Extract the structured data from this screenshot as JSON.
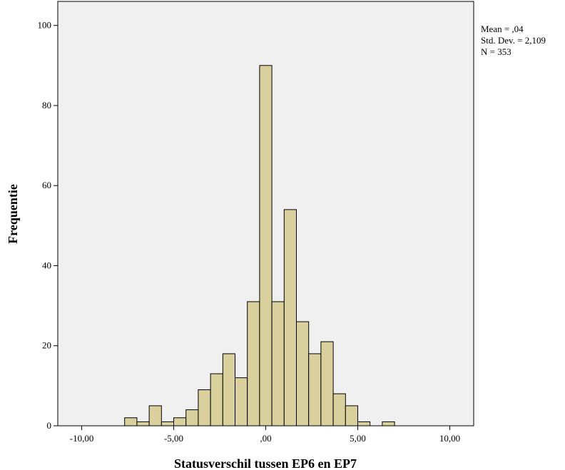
{
  "chart_data": {
    "type": "bar",
    "subtype": "histogram",
    "xlabel": "Statusverschil tussen EP6 en EP7",
    "ylabel": "Frequentie",
    "xlim": [
      -11.3,
      11.3
    ],
    "ylim": [
      0,
      106
    ],
    "x_ticks": [
      -10,
      -5,
      0,
      5,
      10
    ],
    "x_tick_labels": [
      "-10,00",
      "-5,00",
      ",00",
      "5,00",
      "10,00"
    ],
    "y_ticks": [
      0,
      20,
      40,
      60,
      80,
      100
    ],
    "y_tick_labels": [
      "0",
      "20",
      "40",
      "60",
      "80",
      "100"
    ],
    "bin_width": 0.6667,
    "bins": [
      {
        "x0": -7.667,
        "count": 2
      },
      {
        "x0": -7.0,
        "count": 1
      },
      {
        "x0": -6.333,
        "count": 5
      },
      {
        "x0": -5.667,
        "count": 1
      },
      {
        "x0": -5.0,
        "count": 2
      },
      {
        "x0": -4.333,
        "count": 4
      },
      {
        "x0": -3.667,
        "count": 9
      },
      {
        "x0": -3.0,
        "count": 13
      },
      {
        "x0": -2.333,
        "count": 18
      },
      {
        "x0": -1.667,
        "count": 12
      },
      {
        "x0": -1.0,
        "count": 31
      },
      {
        "x0": -0.333,
        "count": 90
      },
      {
        "x0": 0.333,
        "count": 31
      },
      {
        "x0": 1.0,
        "count": 54
      },
      {
        "x0": 1.667,
        "count": 26
      },
      {
        "x0": 2.333,
        "count": 18
      },
      {
        "x0": 3.0,
        "count": 21
      },
      {
        "x0": 3.667,
        "count": 8
      },
      {
        "x0": 4.333,
        "count": 5
      },
      {
        "x0": 5.0,
        "count": 1
      },
      {
        "x0": 5.667,
        "count": 0
      },
      {
        "x0": 6.333,
        "count": 1
      }
    ],
    "stats": [
      "Mean = ,04",
      "Std. Dev. = 2,109",
      "N = 353"
    ],
    "grid": false,
    "colors": {
      "bar_fill": "#D9D09E",
      "bar_stroke": "#000000",
      "plot_bg": "#F0F0F0"
    }
  }
}
